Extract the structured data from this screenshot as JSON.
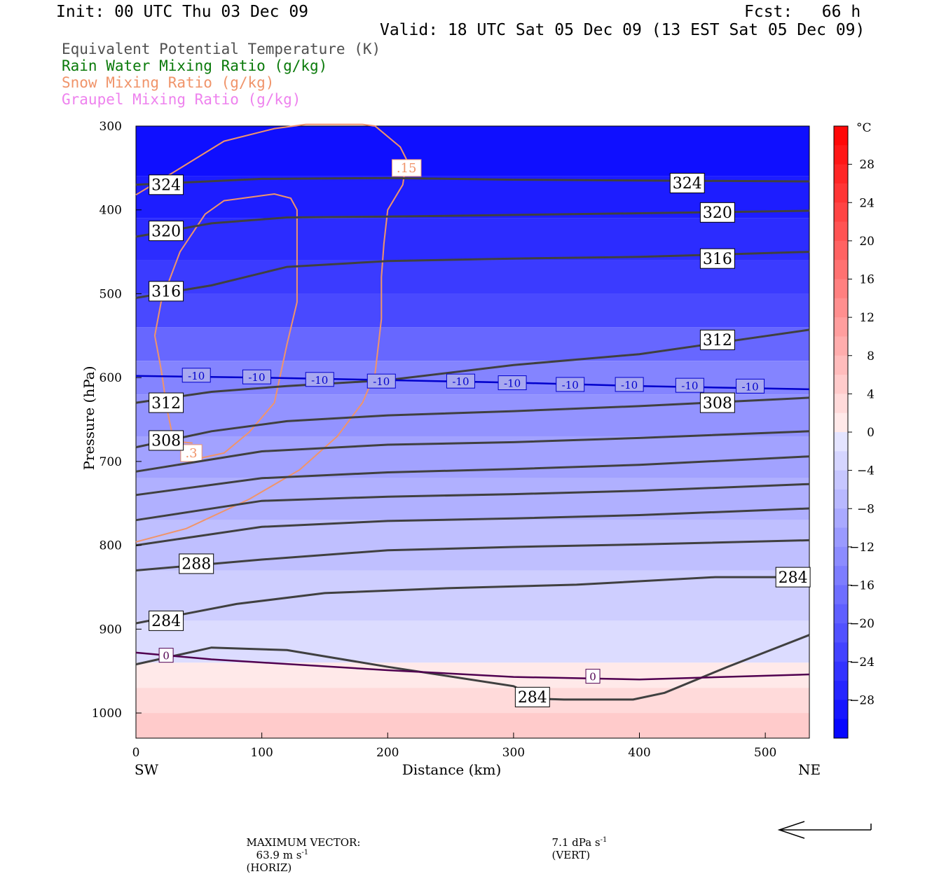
{
  "header": {
    "init": "Init: 00 UTC Thu 03 Dec 09",
    "fcst": "Fcst:   66 h",
    "valid": "Valid: 18 UTC Sat 05 Dec 09 (13 EST Sat 05 Dec 09)"
  },
  "legend": [
    {
      "label": "Equivalent Potential Temperature (K)",
      "color": "#505050"
    },
    {
      "label": "Rain Water Mixing Ratio (g/kg)",
      "color": "#0a7a0a"
    },
    {
      "label": "Snow Mixing Ratio (g/kg)",
      "color": "#f0946a"
    },
    {
      "label": "Graupel Mixing Ratio (g/kg)",
      "color": "#ee82ee"
    }
  ],
  "footer": {
    "max_vector_label": "MAXIMUM VECTOR:",
    "horiz": "63.9 m s",
    "horiz_tag": "(HORIZ)",
    "vert": "7.1 dPa s",
    "vert_tag": "(VERT)",
    "exp": "-1"
  },
  "chart_data": {
    "type": "cross-section",
    "xlabel": "Distance (km)",
    "ylabel": "Pressure (hPa)",
    "x_ticks": [
      0,
      100,
      200,
      300,
      400,
      500
    ],
    "y_ticks": [
      300,
      400,
      500,
      600,
      700,
      800,
      900,
      1000
    ],
    "xlim": [
      0,
      535
    ],
    "ylim": [
      300,
      1030
    ],
    "y_inverted": true,
    "x_end_labels": {
      "left": "SW",
      "right": "NE"
    },
    "colorbar": {
      "unit": "°C",
      "tick_labels": [
        "28",
        "24",
        "20",
        "16",
        "12",
        "8",
        "4",
        "0",
        "−4",
        "−8",
        "−12",
        "−16",
        "−20",
        "−24",
        "−28"
      ],
      "tick_values": [
        28,
        24,
        20,
        16,
        12,
        8,
        4,
        0,
        -4,
        -8,
        -12,
        -16,
        -20,
        -24,
        -28
      ],
      "range": [
        -32,
        32
      ]
    },
    "temperature_fill_levels": [
      {
        "p_top": 300,
        "p_bot": 360,
        "temp": -30
      },
      {
        "p_top": 360,
        "p_bot": 410,
        "temp": -28
      },
      {
        "p_top": 410,
        "p_bot": 460,
        "temp": -26
      },
      {
        "p_top": 460,
        "p_bot": 500,
        "temp": -24
      },
      {
        "p_top": 500,
        "p_bot": 540,
        "temp": -22
      },
      {
        "p_top": 540,
        "p_bot": 580,
        "temp": -18
      },
      {
        "p_top": 580,
        "p_bot": 620,
        "temp": -14
      },
      {
        "p_top": 620,
        "p_bot": 670,
        "temp": -12
      },
      {
        "p_top": 670,
        "p_bot": 720,
        "temp": -10
      },
      {
        "p_top": 720,
        "p_bot": 770,
        "temp": -8
      },
      {
        "p_top": 770,
        "p_bot": 830,
        "temp": -6
      },
      {
        "p_top": 830,
        "p_bot": 890,
        "temp": -4
      },
      {
        "p_top": 890,
        "p_bot": 940,
        "temp": -2
      },
      {
        "p_top": 940,
        "p_bot": 970,
        "temp": 1
      },
      {
        "p_top": 970,
        "p_bot": 1000,
        "temp": 3
      },
      {
        "p_top": 1000,
        "p_bot": 1030,
        "temp": 5
      }
    ],
    "theta_e_contours": [
      {
        "value": "324",
        "points": [
          [
            0,
            370
          ],
          [
            100,
            363
          ],
          [
            200,
            362
          ],
          [
            300,
            364
          ],
          [
            400,
            365
          ],
          [
            535,
            366
          ]
        ],
        "labels": [
          [
            24,
            370
          ],
          [
            438,
            368
          ]
        ]
      },
      {
        "value": "320",
        "points": [
          [
            0,
            432
          ],
          [
            60,
            416
          ],
          [
            120,
            409
          ],
          [
            200,
            408
          ],
          [
            300,
            406
          ],
          [
            400,
            404
          ],
          [
            535,
            401
          ]
        ],
        "labels": [
          [
            24,
            425
          ],
          [
            462,
            403
          ]
        ]
      },
      {
        "value": "316",
        "points": [
          [
            0,
            505
          ],
          [
            60,
            490
          ],
          [
            120,
            468
          ],
          [
            200,
            461
          ],
          [
            300,
            458
          ],
          [
            400,
            456
          ],
          [
            535,
            450
          ]
        ],
        "labels": [
          [
            24,
            497
          ],
          [
            462,
            458
          ]
        ]
      },
      {
        "value": "312",
        "points": [
          [
            0,
            630
          ],
          [
            60,
            617
          ],
          [
            120,
            610
          ],
          [
            200,
            603
          ],
          [
            300,
            585
          ],
          [
            400,
            572
          ],
          [
            535,
            543
          ]
        ],
        "labels": [
          [
            24,
            630
          ],
          [
            462,
            555
          ]
        ]
      },
      {
        "value": "308",
        "points": [
          [
            0,
            683
          ],
          [
            60,
            664
          ],
          [
            120,
            652
          ],
          [
            200,
            645
          ],
          [
            300,
            640
          ],
          [
            400,
            634
          ],
          [
            535,
            624
          ]
        ],
        "labels": [
          [
            24,
            675
          ],
          [
            462,
            630
          ]
        ]
      },
      {
        "value": "",
        "points": [
          [
            0,
            712
          ],
          [
            100,
            688
          ],
          [
            200,
            680
          ],
          [
            300,
            677
          ],
          [
            400,
            672
          ],
          [
            535,
            664
          ]
        ],
        "labels": []
      },
      {
        "value": "",
        "points": [
          [
            0,
            740
          ],
          [
            100,
            720
          ],
          [
            200,
            713
          ],
          [
            300,
            709
          ],
          [
            400,
            704
          ],
          [
            535,
            694
          ]
        ],
        "labels": []
      },
      {
        "value": "",
        "points": [
          [
            0,
            770
          ],
          [
            100,
            747
          ],
          [
            200,
            742
          ],
          [
            300,
            739
          ],
          [
            400,
            735
          ],
          [
            535,
            727
          ]
        ],
        "labels": []
      },
      {
        "value": "",
        "points": [
          [
            0,
            800
          ],
          [
            100,
            778
          ],
          [
            200,
            771
          ],
          [
            300,
            768
          ],
          [
            400,
            764
          ],
          [
            535,
            756
          ]
        ],
        "labels": []
      },
      {
        "value": "288",
        "points": [
          [
            0,
            830
          ],
          [
            100,
            817
          ],
          [
            200,
            806
          ],
          [
            300,
            802
          ],
          [
            400,
            799
          ],
          [
            535,
            794
          ]
        ],
        "labels": [
          [
            48,
            822
          ]
        ]
      },
      {
        "value": "284",
        "points": [
          [
            0,
            893
          ],
          [
            80,
            870
          ],
          [
            150,
            857
          ],
          [
            250,
            851
          ],
          [
            350,
            847
          ],
          [
            460,
            838
          ],
          [
            535,
            838
          ]
        ],
        "labels": [
          [
            24,
            890
          ],
          [
            522,
            838
          ]
        ]
      },
      {
        "value": "284",
        "points": [
          [
            0,
            942
          ],
          [
            60,
            922
          ],
          [
            120,
            925
          ],
          [
            200,
            945
          ],
          [
            300,
            968
          ],
          [
            320,
            983
          ],
          [
            340,
            984
          ],
          [
            370,
            984
          ],
          [
            395,
            984
          ],
          [
            420,
            976
          ],
          [
            470,
            945
          ],
          [
            535,
            907
          ]
        ],
        "labels": [
          [
            315,
            981
          ]
        ]
      }
    ],
    "isotherm_contours": [
      {
        "value": "-10",
        "points": [
          [
            0,
            598
          ],
          [
            100,
            600
          ],
          [
            200,
            603
          ],
          [
            300,
            606
          ],
          [
            400,
            610
          ],
          [
            535,
            614
          ]
        ],
        "labels": [
          [
            48,
            598
          ],
          [
            96,
            600
          ],
          [
            146,
            603
          ],
          [
            195,
            605
          ],
          [
            258,
            605
          ],
          [
            299,
            607
          ],
          [
            345,
            609
          ],
          [
            392,
            609
          ],
          [
            440,
            610
          ],
          [
            488,
            611
          ]
        ]
      },
      {
        "value": "0",
        "points": [
          [
            0,
            928
          ],
          [
            60,
            936
          ],
          [
            200,
            949
          ],
          [
            300,
            957
          ],
          [
            400,
            960
          ],
          [
            535,
            954
          ]
        ],
        "labels": [
          [
            24,
            932
          ],
          [
            363,
            957
          ]
        ]
      }
    ],
    "snow_contours": [
      {
        "value": ".15",
        "points": [
          [
            0,
            382
          ],
          [
            30,
            355
          ],
          [
            70,
            318
          ],
          [
            110,
            303
          ],
          [
            135,
            298
          ],
          [
            180,
            298
          ],
          [
            190,
            300
          ],
          [
            210,
            325
          ],
          [
            215,
            340
          ],
          [
            212,
            370
          ],
          [
            200,
            400
          ],
          [
            197,
            440
          ],
          [
            195,
            480
          ],
          [
            195,
            530
          ],
          [
            190,
            595
          ],
          [
            180,
            630
          ],
          [
            160,
            670
          ],
          [
            130,
            710
          ],
          [
            90,
            745
          ],
          [
            40,
            780
          ],
          [
            0,
            796
          ]
        ],
        "labels": [
          [
            215,
            350
          ]
        ]
      },
      {
        "value": ".3",
        "points": [
          [
            45,
            698
          ],
          [
            70,
            690
          ],
          [
            90,
            665
          ],
          [
            110,
            630
          ],
          [
            120,
            560
          ],
          [
            128,
            510
          ],
          [
            128,
            400
          ],
          [
            123,
            386
          ],
          [
            110,
            381
          ],
          [
            70,
            389
          ],
          [
            55,
            405
          ],
          [
            35,
            450
          ],
          [
            20,
            510
          ],
          [
            15,
            550
          ],
          [
            20,
            590
          ],
          [
            25,
            640
          ],
          [
            30,
            676
          ],
          [
            45,
            678
          ]
        ],
        "labels": [
          [
            44,
            690
          ]
        ]
      }
    ]
  }
}
